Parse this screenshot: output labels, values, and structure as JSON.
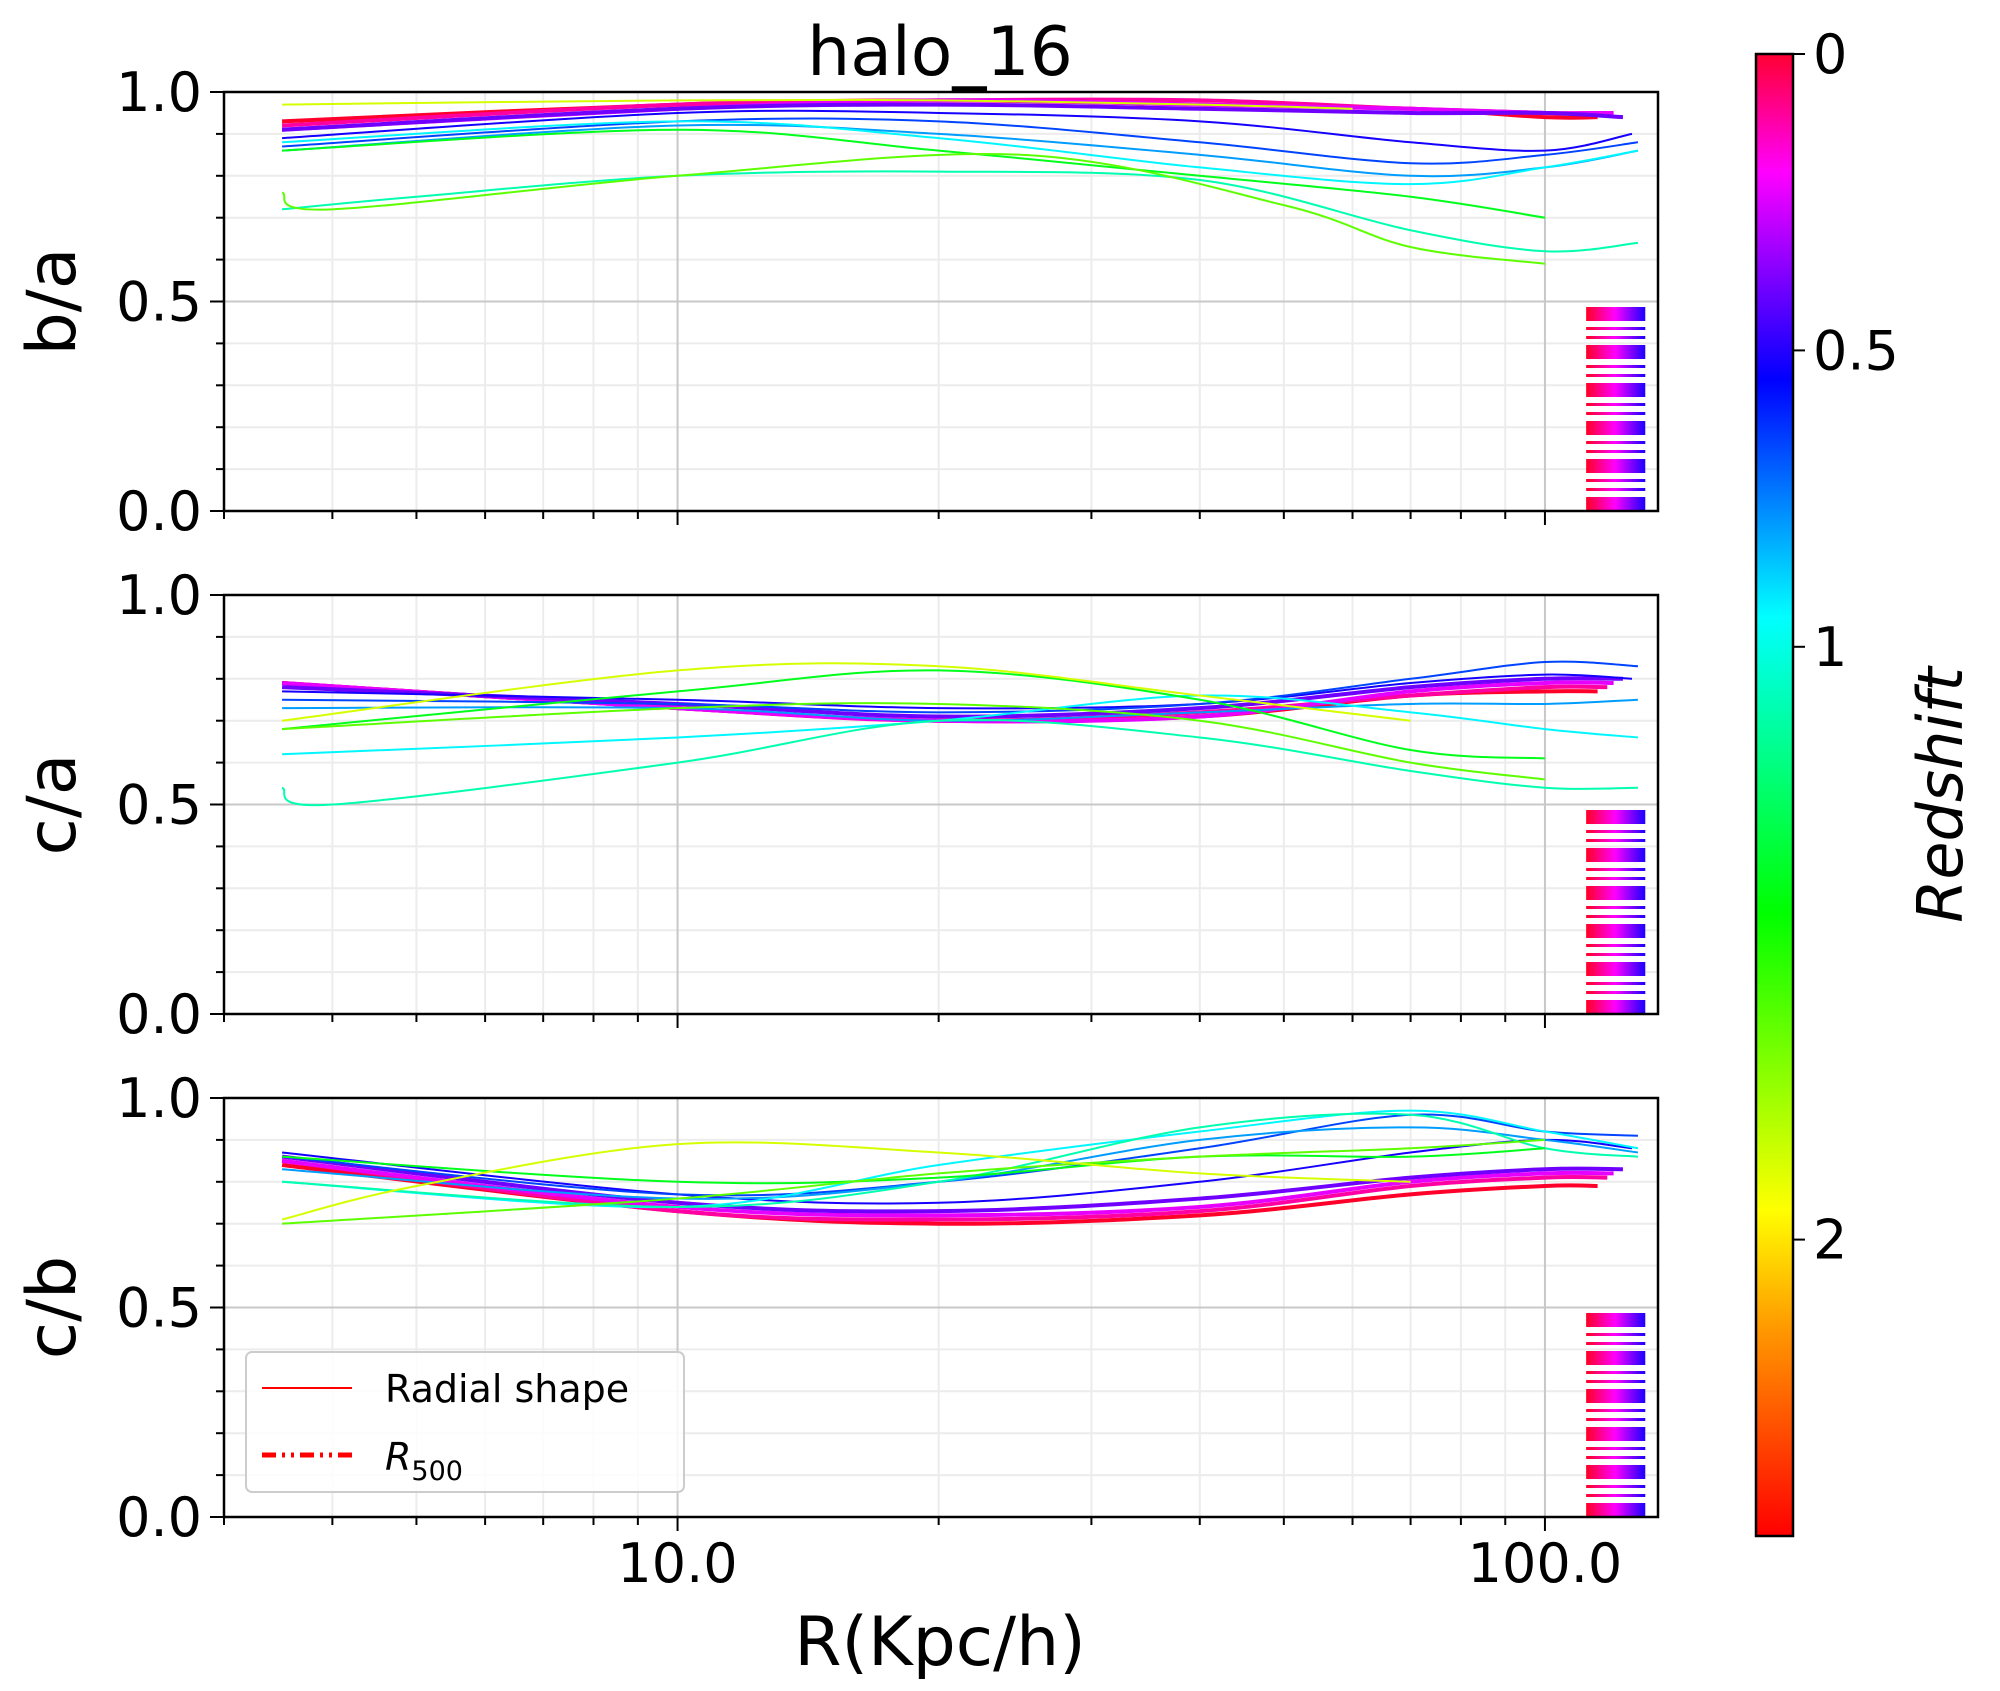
{
  "chart_data": {
    "type": "line",
    "title": "halo_16",
    "xlabel": "R(Kpc/h)",
    "x_scale": "log",
    "xlim": [
      3.0,
      135.0
    ],
    "x_ticks": [
      10.0,
      100.0
    ],
    "x_tick_labels": [
      "10.0",
      "100.0"
    ],
    "grid": true,
    "panels": [
      {
        "ylabel": "b/a",
        "ylim": [
          0.0,
          1.0
        ],
        "y_tick_labels": [
          "0.0",
          "0.5",
          "1.0"
        ],
        "series": [
          {
            "z": 0.0,
            "x": [
              3.5,
              10,
              20,
              40,
              70,
              100,
              115
            ],
            "y": [
              0.93,
              0.97,
              0.98,
              0.97,
              0.96,
              0.94,
              0.94
            ]
          },
          {
            "z": 0.2,
            "x": [
              3.5,
              10,
              20,
              40,
              70,
              100,
              118
            ],
            "y": [
              0.92,
              0.97,
              0.98,
              0.98,
              0.96,
              0.95,
              0.95
            ]
          },
          {
            "z": 0.4,
            "x": [
              3.5,
              10,
              20,
              40,
              70,
              100,
              120
            ],
            "y": [
              0.91,
              0.96,
              0.98,
              0.97,
              0.96,
              0.95,
              0.95
            ]
          },
          {
            "z": 0.6,
            "x": [
              3.5,
              10,
              20,
              40,
              70,
              100,
              123
            ],
            "y": [
              0.91,
              0.96,
              0.97,
              0.96,
              0.95,
              0.95,
              0.94
            ]
          },
          {
            "z": 0.75,
            "x": [
              3.5,
              10,
              20,
              40,
              70,
              100,
              126
            ],
            "y": [
              0.89,
              0.95,
              0.95,
              0.93,
              0.88,
              0.86,
              0.9
            ]
          },
          {
            "z": 0.9,
            "x": [
              3.5,
              10,
              20,
              40,
              70,
              100,
              128
            ],
            "y": [
              0.87,
              0.93,
              0.93,
              0.88,
              0.83,
              0.85,
              0.88
            ]
          },
          {
            "z": 1.05,
            "x": [
              3.5,
              10,
              20,
              40,
              70,
              100,
              128
            ],
            "y": [
              0.86,
              0.92,
              0.9,
              0.85,
              0.8,
              0.82,
              0.86
            ]
          },
          {
            "z": 1.2,
            "x": [
              3.5,
              10,
              20,
              40,
              70,
              100,
              128
            ],
            "y": [
              0.88,
              0.93,
              0.89,
              0.82,
              0.78,
              0.82,
              0.86
            ]
          },
          {
            "z": 1.35,
            "x": [
              3.5,
              5,
              10,
              20,
              40,
              70,
              100,
              128
            ],
            "y": [
              0.72,
              0.75,
              0.8,
              0.81,
              0.79,
              0.67,
              0.62,
              0.64
            ]
          },
          {
            "z": 1.6,
            "x": [
              3.5,
              10,
              20,
              40,
              70,
              100
            ],
            "y": [
              0.86,
              0.91,
              0.86,
              0.8,
              0.75,
              0.7
            ]
          },
          {
            "z": 1.8,
            "x": [
              3.5,
              4,
              10,
              25,
              50,
              70,
              100
            ],
            "y": [
              0.76,
              0.72,
              0.8,
              0.85,
              0.73,
              0.63,
              0.59
            ]
          },
          {
            "z": 2.0,
            "x": [
              3.5,
              10,
              20,
              40,
              60
            ],
            "y": [
              0.97,
              0.98,
              0.98,
              0.97,
              0.96
            ]
          }
        ]
      },
      {
        "ylabel": "c/a",
        "ylim": [
          0.0,
          1.0
        ],
        "y_tick_labels": [
          "0.0",
          "0.5",
          "1.0"
        ],
        "series": [
          {
            "z": 0.0,
            "x": [
              3.5,
              10,
              20,
              40,
              70,
              100,
              115
            ],
            "y": [
              0.79,
              0.73,
              0.7,
              0.71,
              0.76,
              0.77,
              0.77
            ]
          },
          {
            "z": 0.2,
            "x": [
              3.5,
              10,
              20,
              40,
              70,
              100,
              118
            ],
            "y": [
              0.79,
              0.73,
              0.7,
              0.72,
              0.76,
              0.78,
              0.78
            ]
          },
          {
            "z": 0.4,
            "x": [
              3.5,
              10,
              20,
              40,
              70,
              100,
              120
            ],
            "y": [
              0.79,
              0.73,
              0.7,
              0.71,
              0.77,
              0.79,
              0.79
            ]
          },
          {
            "z": 0.6,
            "x": [
              3.5,
              10,
              20,
              40,
              70,
              100,
              123
            ],
            "y": [
              0.78,
              0.74,
              0.71,
              0.73,
              0.78,
              0.8,
              0.8
            ]
          },
          {
            "z": 0.75,
            "x": [
              3.5,
              10,
              20,
              40,
              70,
              100,
              126
            ],
            "y": [
              0.77,
              0.75,
              0.73,
              0.74,
              0.79,
              0.81,
              0.8
            ]
          },
          {
            "z": 0.9,
            "x": [
              3.5,
              10,
              20,
              40,
              70,
              100,
              128
            ],
            "y": [
              0.75,
              0.74,
              0.72,
              0.74,
              0.8,
              0.84,
              0.83
            ]
          },
          {
            "z": 1.05,
            "x": [
              3.5,
              10,
              20,
              40,
              70,
              100,
              128
            ],
            "y": [
              0.73,
              0.73,
              0.7,
              0.72,
              0.74,
              0.74,
              0.75
            ]
          },
          {
            "z": 1.2,
            "x": [
              3.5,
              10,
              20,
              40,
              70,
              100,
              128
            ],
            "y": [
              0.62,
              0.66,
              0.7,
              0.76,
              0.72,
              0.68,
              0.66
            ]
          },
          {
            "z": 1.35,
            "x": [
              3.5,
              4,
              10,
              20,
              40,
              70,
              100,
              128
            ],
            "y": [
              0.54,
              0.5,
              0.6,
              0.7,
              0.66,
              0.58,
              0.54,
              0.54
            ]
          },
          {
            "z": 1.6,
            "x": [
              3.5,
              10,
              20,
              40,
              70,
              100
            ],
            "y": [
              0.68,
              0.77,
              0.82,
              0.75,
              0.63,
              0.61
            ]
          },
          {
            "z": 1.8,
            "x": [
              3.5,
              10,
              20,
              40,
              70,
              100
            ],
            "y": [
              0.68,
              0.73,
              0.74,
              0.7,
              0.6,
              0.56
            ]
          },
          {
            "z": 2.0,
            "x": [
              3.5,
              10,
              20,
              40,
              70
            ],
            "y": [
              0.7,
              0.82,
              0.83,
              0.76,
              0.7
            ]
          }
        ]
      },
      {
        "ylabel": "c/b",
        "ylim": [
          0.0,
          1.0
        ],
        "y_tick_labels": [
          "0.0",
          "0.5",
          "1.0"
        ],
        "series": [
          {
            "z": 0.0,
            "x": [
              3.5,
              10,
              20,
              40,
              70,
              100,
              115
            ],
            "y": [
              0.84,
              0.73,
              0.7,
              0.72,
              0.77,
              0.79,
              0.79
            ]
          },
          {
            "z": 0.2,
            "x": [
              3.5,
              10,
              20,
              40,
              70,
              100,
              118
            ],
            "y": [
              0.85,
              0.73,
              0.71,
              0.73,
              0.79,
              0.81,
              0.81
            ]
          },
          {
            "z": 0.4,
            "x": [
              3.5,
              10,
              20,
              40,
              70,
              100,
              120
            ],
            "y": [
              0.85,
              0.74,
              0.72,
              0.74,
              0.8,
              0.82,
              0.82
            ]
          },
          {
            "z": 0.6,
            "x": [
              3.5,
              10,
              20,
              40,
              70,
              100,
              123
            ],
            "y": [
              0.86,
              0.75,
              0.73,
              0.76,
              0.81,
              0.83,
              0.83
            ]
          },
          {
            "z": 0.75,
            "x": [
              3.5,
              10,
              20,
              40,
              70,
              100,
              126
            ],
            "y": [
              0.87,
              0.77,
              0.75,
              0.8,
              0.87,
              0.9,
              0.88
            ]
          },
          {
            "z": 0.9,
            "x": [
              3.5,
              10,
              20,
              40,
              70,
              100,
              128
            ],
            "y": [
              0.86,
              0.77,
              0.8,
              0.88,
              0.96,
              0.92,
              0.91
            ]
          },
          {
            "z": 1.05,
            "x": [
              3.5,
              10,
              20,
              40,
              70,
              100,
              128
            ],
            "y": [
              0.83,
              0.76,
              0.8,
              0.9,
              0.93,
              0.9,
              0.87
            ]
          },
          {
            "z": 1.2,
            "x": [
              3.5,
              10,
              20,
              40,
              70,
              100,
              128
            ],
            "y": [
              0.8,
              0.74,
              0.84,
              0.92,
              0.97,
              0.92,
              0.88
            ]
          },
          {
            "z": 1.35,
            "x": [
              3.5,
              10,
              20,
              40,
              70,
              100,
              128
            ],
            "y": [
              0.8,
              0.74,
              0.8,
              0.93,
              0.96,
              0.88,
              0.86
            ]
          },
          {
            "z": 1.6,
            "x": [
              3.5,
              10,
              20,
              40,
              70,
              100
            ],
            "y": [
              0.86,
              0.8,
              0.81,
              0.86,
              0.86,
              0.88
            ]
          },
          {
            "z": 1.8,
            "x": [
              3.5,
              10,
              20,
              40,
              70,
              100
            ],
            "y": [
              0.7,
              0.76,
              0.82,
              0.86,
              0.88,
              0.9
            ]
          },
          {
            "z": 2.0,
            "x": [
              3.5,
              5,
              10,
              20,
              40,
              70
            ],
            "y": [
              0.71,
              0.79,
              0.89,
              0.87,
              0.82,
              0.8
            ]
          }
        ]
      }
    ],
    "r500": {
      "ymax": 0.5,
      "x_range": [
        112,
        130
      ]
    },
    "legend": {
      "placement": "lower-left",
      "panel": 2,
      "entries": [
        {
          "label": "Radial shape",
          "style": "solid",
          "color": "#ff0000"
        },
        {
          "label_main": "R",
          "label_sub": "500",
          "style": "dashdot",
          "color": "#ff0000"
        }
      ]
    },
    "colorbar": {
      "label": "Redshift",
      "range": [
        0,
        2.5
      ],
      "ticks": [
        0,
        0.5,
        1,
        2
      ],
      "tick_labels": [
        "0",
        "0.5",
        "1",
        "2"
      ],
      "colormap": "hsv (reversed): red at z=2.5 through yellow, green, cyan, blue, magenta to red at z=0"
    }
  }
}
